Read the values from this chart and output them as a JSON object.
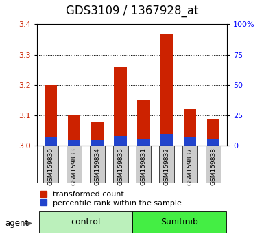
{
  "title": "GDS3109 / 1367928_at",
  "samples": [
    "GSM159830",
    "GSM159833",
    "GSM159834",
    "GSM159835",
    "GSM159831",
    "GSM159832",
    "GSM159837",
    "GSM159838"
  ],
  "group_labels": [
    "control",
    "Sunitinib"
  ],
  "group_colors": [
    "#bbf0bb",
    "#44ee44"
  ],
  "transformed_counts": [
    3.2,
    3.1,
    3.08,
    3.26,
    3.15,
    3.37,
    3.12,
    3.09
  ],
  "percentile_ranks": [
    7,
    5,
    5,
    8,
    6,
    10,
    7,
    6
  ],
  "bar_baseline": 3.0,
  "ylim_left": [
    3.0,
    3.4
  ],
  "ylim_right": [
    0,
    100
  ],
  "yticks_left": [
    3.0,
    3.1,
    3.2,
    3.3,
    3.4
  ],
  "yticks_right": [
    0,
    25,
    50,
    75,
    100
  ],
  "ytick_labels_right": [
    "0",
    "25",
    "50",
    "75",
    "100%"
  ],
  "bar_color_red": "#cc2200",
  "bar_color_blue": "#2244cc",
  "bar_width": 0.55,
  "title_fontsize": 12,
  "tick_fontsize": 8,
  "label_fontsize": 9,
  "legend_fontsize": 8,
  "bg_xticklabel": "#cccccc",
  "n_control": 4,
  "n_sunitinib": 4
}
